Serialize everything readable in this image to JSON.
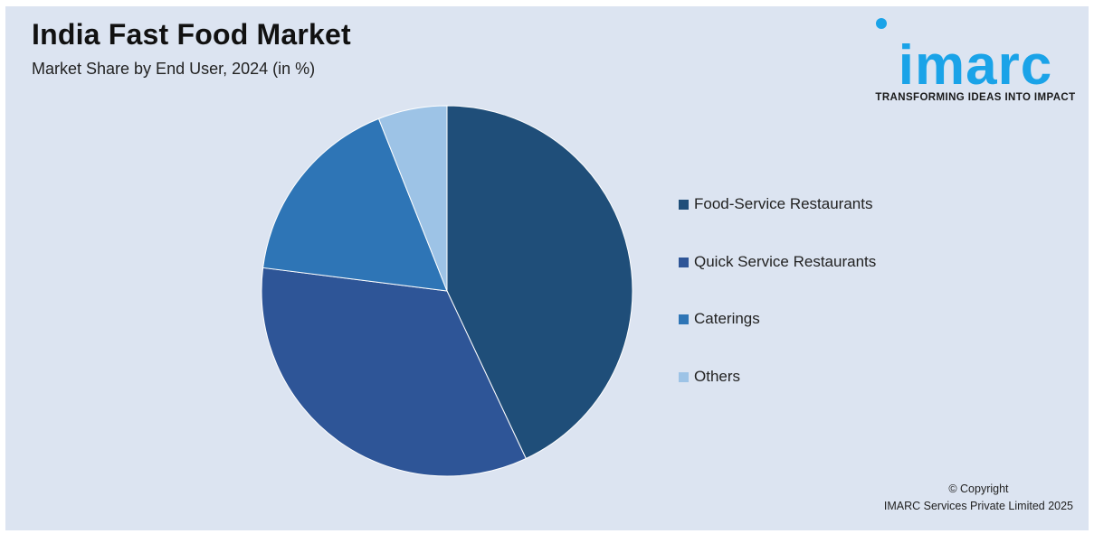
{
  "header": {
    "title": "India Fast Food Market",
    "subtitle": "Market Share by End User, 2024 (in %)"
  },
  "logo": {
    "wordmark": "imarc",
    "tagline": "TRANSFORMING IDEAS INTO IMPACT",
    "color": "#1aa3e8"
  },
  "chart_data": {
    "type": "pie",
    "title": "India Fast Food Market",
    "subtitle": "Market Share by End User, 2024 (in %)",
    "categories": [
      "Food-Service Restaurants",
      "Quick Service Restaurants",
      "Caterings",
      "Others"
    ],
    "values": [
      43,
      34,
      17,
      6
    ],
    "colors": [
      "#1f4e79",
      "#2e5597",
      "#2e75b6",
      "#9dc3e6"
    ],
    "legend_position": "right"
  },
  "footer": {
    "copyright_line1": "© Copyright",
    "copyright_line2": "IMARC Services Private Limited 2025"
  }
}
